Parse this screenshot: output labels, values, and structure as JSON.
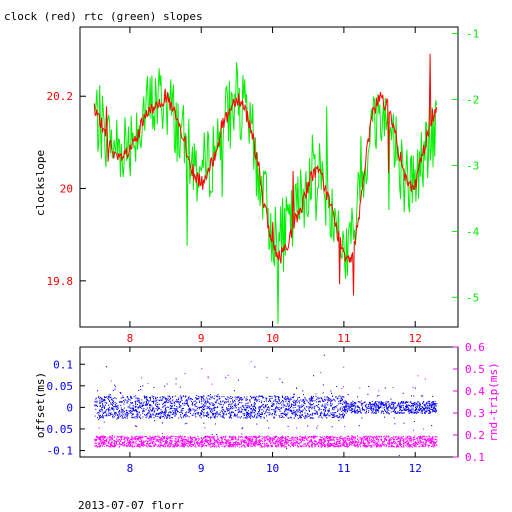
{
  "title": "clock (red) rtc (green) slopes",
  "footer": "2013-07-07 florr",
  "colors": {
    "clock": "#ff0000",
    "rtc": "#00ee00",
    "offset": "#0000ff",
    "rndtrip": "#ff00ff",
    "axis": "#000000"
  },
  "chart_data": [
    {
      "type": "line",
      "title": "clock (red) rtc (green) slopes",
      "ylabel": "clockslope",
      "x_ticks": [
        "8",
        "9",
        "10",
        "11",
        "12"
      ],
      "xlim": [
        7.3,
        12.6
      ],
      "ylim": [
        19.7,
        20.35
      ],
      "y_ticks": [
        "19.8",
        "20",
        "20.2"
      ],
      "y2lim": [
        -5.45,
        -0.9
      ],
      "y2_ticks": [
        "-1",
        "-2",
        "-3",
        "-4",
        "-5"
      ],
      "grid": false,
      "series": [
        {
          "axis": "left",
          "x": [
            7.5,
            7.6,
            7.7,
            7.8,
            7.9,
            8.0,
            8.1,
            8.2,
            8.3,
            8.4,
            8.5,
            8.6,
            8.7,
            8.8,
            8.9,
            9.0,
            9.1,
            9.2,
            9.3,
            9.4,
            9.5,
            9.6,
            9.7,
            9.8,
            9.9,
            10.0,
            10.1,
            10.2,
            10.3,
            10.4,
            10.5,
            10.6,
            10.7,
            10.8,
            10.9,
            11.0,
            11.1,
            11.2,
            11.3,
            11.4,
            11.5,
            11.6,
            11.7,
            11.8,
            11.9,
            12.0,
            12.1,
            12.2,
            12.3
          ],
          "y": [
            20.17,
            20.14,
            20.1,
            20.06,
            20.07,
            20.08,
            20.11,
            20.15,
            20.17,
            20.19,
            20.2,
            20.17,
            20.13,
            20.08,
            20.03,
            20.01,
            20.03,
            20.08,
            20.14,
            20.17,
            20.2,
            20.18,
            20.13,
            20.05,
            19.95,
            19.87,
            19.85,
            19.88,
            19.92,
            19.96,
            20.01,
            20.04,
            20.02,
            19.97,
            19.91,
            19.86,
            19.85,
            19.93,
            20.05,
            20.16,
            20.2,
            20.18,
            20.13,
            20.06,
            20.0,
            20.01,
            20.07,
            20.14,
            20.18
          ]
        },
        {
          "axis": "right",
          "x": [
            7.5,
            7.6,
            7.7,
            7.8,
            7.9,
            8.0,
            8.1,
            8.2,
            8.3,
            8.4,
            8.5,
            8.6,
            8.7,
            8.8,
            8.9,
            9.0,
            9.1,
            9.2,
            9.3,
            9.4,
            9.5,
            9.6,
            9.7,
            9.8,
            9.9,
            10.0,
            10.1,
            10.2,
            10.3,
            10.4,
            10.5,
            10.6,
            10.7,
            10.8,
            10.9,
            11.0,
            11.1,
            11.2,
            11.3,
            11.4,
            11.5,
            11.6,
            11.7,
            11.8,
            11.9,
            12.0,
            12.1,
            12.2,
            12.3
          ],
          "y": [
            -2.2,
            -2.4,
            -2.6,
            -2.7,
            -2.7,
            -2.6,
            -2.4,
            -2.2,
            -2.1,
            -2.0,
            -2.0,
            -2.2,
            -2.5,
            -2.8,
            -3.0,
            -3.1,
            -3.0,
            -2.7,
            -2.4,
            -2.2,
            -2.1,
            -2.2,
            -2.5,
            -3.1,
            -3.6,
            -4.0,
            -4.1,
            -4.0,
            -3.8,
            -3.5,
            -3.2,
            -3.0,
            -3.2,
            -3.6,
            -4.0,
            -4.3,
            -4.2,
            -3.6,
            -2.9,
            -2.4,
            -2.2,
            -2.3,
            -2.6,
            -3.0,
            -3.3,
            -3.2,
            -2.9,
            -2.6,
            -2.5
          ]
        }
      ]
    },
    {
      "type": "scatter",
      "ylabel": "offset(ms)",
      "y2label": "rnd-trip(ms)",
      "x_ticks": [
        "8",
        "9",
        "10",
        "11",
        "12"
      ],
      "xlim": [
        7.3,
        12.6
      ],
      "ylim": [
        -0.115,
        0.14
      ],
      "y_ticks": [
        "0.1",
        "0.05",
        "0",
        "-0.05",
        "-0.1"
      ],
      "y2lim": [
        0.1,
        0.6
      ],
      "y2_ticks": [
        "0.6",
        "0.5",
        "0.4",
        "0.3",
        "0.2",
        "0.1"
      ],
      "grid": false,
      "series": [
        {
          "axis": "left",
          "x": [
            7.5,
            8.0,
            8.5,
            9.0,
            9.5,
            10.0,
            10.5,
            11.0,
            11.5,
            12.0,
            12.3
          ],
          "y": [
            0.0,
            0.001,
            0.0,
            0.002,
            0.0,
            0.001,
            0.0,
            0.001,
            0.0,
            0.0,
            0.0
          ]
        },
        {
          "axis": "right",
          "x": [
            7.5,
            8.0,
            8.5,
            9.0,
            9.5,
            10.0,
            10.5,
            11.0,
            11.5,
            12.0,
            12.3
          ],
          "y": [
            0.17,
            0.17,
            0.17,
            0.17,
            0.17,
            0.17,
            0.17,
            0.17,
            0.17,
            0.17,
            0.17
          ]
        }
      ]
    }
  ]
}
